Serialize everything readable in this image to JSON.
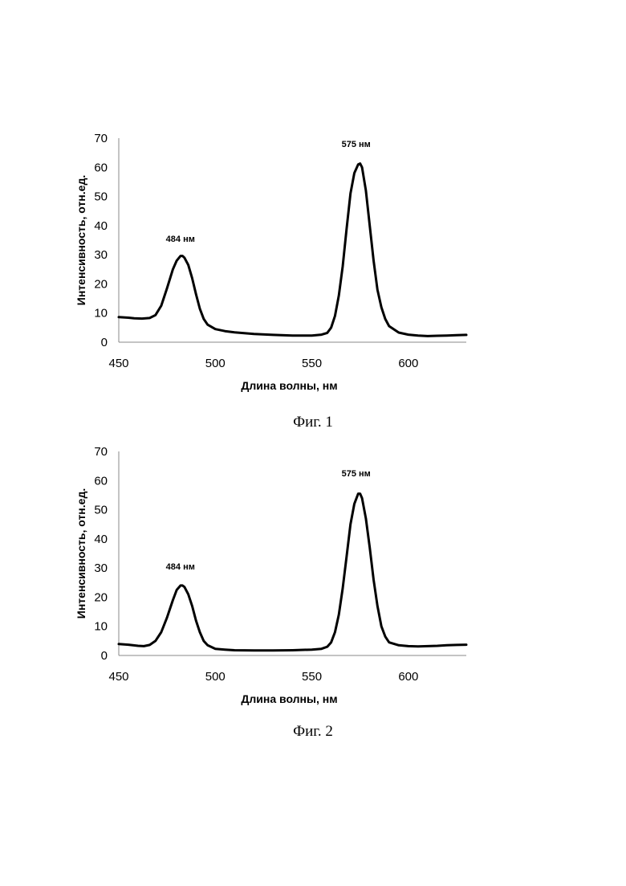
{
  "figures": [
    {
      "caption": "Фиг. 1",
      "chart_data": {
        "type": "line",
        "xlabel": "Длина волны, нм",
        "ylabel": "Интенсивность, отн.ед.",
        "xlim": [
          450,
          630
        ],
        "ylim": [
          0,
          70
        ],
        "xticks": [
          450,
          500,
          550,
          600
        ],
        "yticks": [
          0,
          10,
          20,
          30,
          40,
          50,
          60,
          70
        ],
        "annotations": [
          {
            "text": "484 нм",
            "x": 484,
            "y": 34.5
          },
          {
            "text": "575 нм",
            "x": 575,
            "y": 67
          }
        ],
        "series": [
          {
            "x": [
              450,
              455,
              458,
              462,
              466,
              469,
              472,
              475,
              478,
              480,
              482,
              483,
              484,
              486,
              488,
              490,
              492,
              494,
              496,
              500,
              505,
              510,
              520,
              530,
              540,
              550,
              555,
              558,
              560,
              562,
              564,
              566,
              568,
              570,
              572,
              574,
              575,
              576,
              578,
              580,
              582,
              584,
              586,
              588,
              590,
              595,
              600,
              605,
              610,
              615,
              620,
              625,
              630
            ],
            "y": [
              8.6,
              8.4,
              8.2,
              8.1,
              8.3,
              9.3,
              12.5,
              18.5,
              25,
              28,
              29.6,
              29.6,
              29,
              26.5,
              22,
              16.5,
              11.5,
              8,
              6,
              4.5,
              3.8,
              3.4,
              2.8,
              2.5,
              2.3,
              2.3,
              2.6,
              3.2,
              5,
              9,
              16,
              26,
              39,
              51,
              58,
              61,
              61.3,
              60,
              52,
              40,
              28,
              18,
              12,
              8,
              5.5,
              3.3,
              2.6,
              2.3,
              2.1,
              2.2,
              2.3,
              2.4,
              2.5
            ]
          }
        ]
      }
    },
    {
      "caption": "Фиг. 2",
      "chart_data": {
        "type": "line",
        "xlabel": "Длина волны, нм",
        "ylabel": "Интенсивность, отн.ед.",
        "xlim": [
          450,
          630
        ],
        "ylim": [
          0,
          70
        ],
        "xticks": [
          450,
          500,
          550,
          600
        ],
        "yticks": [
          0,
          10,
          20,
          30,
          40,
          50,
          60,
          70
        ],
        "annotations": [
          {
            "text": "484 нм",
            "x": 484,
            "y": 29.5
          },
          {
            "text": "575 нм",
            "x": 575,
            "y": 61.5
          }
        ],
        "series": [
          {
            "x": [
              450,
              455,
              460,
              463,
              466,
              469,
              472,
              475,
              478,
              480,
              482,
              483,
              484,
              486,
              488,
              490,
              492,
              494,
              496,
              500,
              505,
              510,
              520,
              530,
              540,
              550,
              555,
              558,
              560,
              562,
              564,
              566,
              568,
              570,
              572,
              574,
              575,
              576,
              578,
              580,
              582,
              584,
              586,
              588,
              590,
              595,
              600,
              605,
              610,
              615,
              620,
              625,
              630
            ],
            "y": [
              3.9,
              3.7,
              3.3,
              3.2,
              3.6,
              5,
              8,
              13,
              19,
              22.5,
              24,
              24,
              23.5,
              21,
              17,
              12,
              8,
              5,
              3.5,
              2.3,
              2,
              1.8,
              1.7,
              1.7,
              1.8,
              2,
              2.3,
              3,
              4.5,
              8,
              14,
              23,
              34,
              45,
              52,
              55.5,
              55.5,
              54,
              47,
              37,
              26,
              17,
              10,
              6.5,
              4.5,
              3.5,
              3.2,
              3.1,
              3.2,
              3.3,
              3.5,
              3.6,
              3.7
            ]
          }
        ]
      }
    }
  ]
}
